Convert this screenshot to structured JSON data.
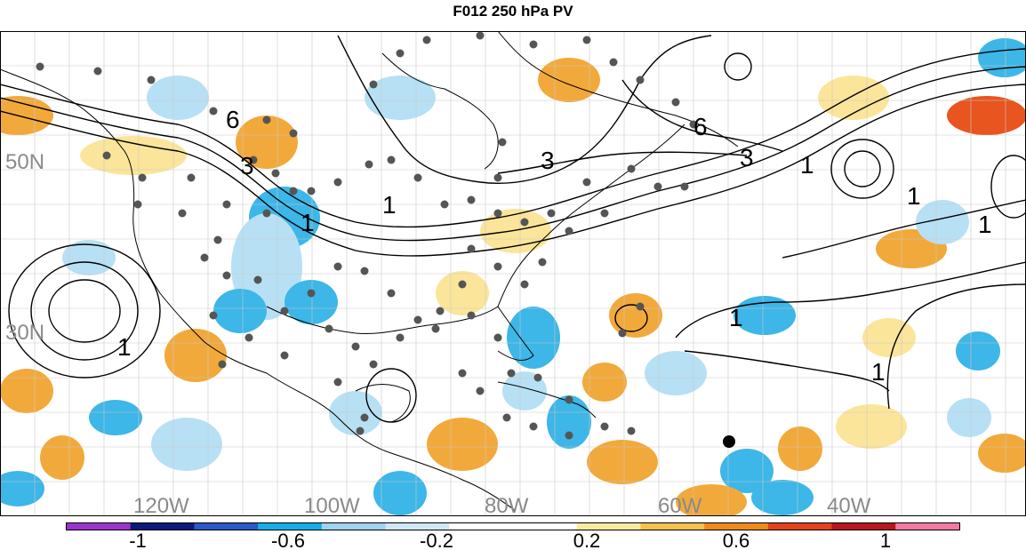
{
  "title": "F012 250 hPa PV",
  "map": {
    "latitude_labels": [
      "50N",
      "30N"
    ],
    "longitude_labels": [
      "120W",
      "100W",
      "80W",
      "60W",
      "40W"
    ],
    "contour_labels": [
      "6",
      "3",
      "1",
      "1",
      "3",
      "3",
      "6",
      "1",
      "1",
      "1",
      "1",
      "1",
      "1"
    ],
    "colors": {
      "ocean": "#ffffff",
      "coast": "#000000",
      "grid": "#c8c8c8",
      "contour": "#000000",
      "station_dot": "#555555",
      "lat_lon_label": "#8a8a8a",
      "pos_weak": "#fbe59a",
      "pos_mid": "#f2a93b",
      "pos_strong": "#e8551e",
      "neg_weak": "#b8e0f4",
      "neg_mid": "#3db6e8",
      "neg_strong": "#2f5fc8"
    }
  },
  "colorbar": {
    "tick_labels": [
      "-1",
      "-0.6",
      "-0.2",
      "0.2",
      "0.6",
      "1"
    ],
    "bins": [
      "#9a35cc",
      "#0c1a7a",
      "#2a58c8",
      "#1aaee8",
      "#9fd3f0",
      "#cfe8f5",
      "#ffffff",
      "#ffffff",
      "#fbeaa0",
      "#f5c24e",
      "#ee8a1e",
      "#e4421e",
      "#b5181e",
      "#f07aa4"
    ]
  }
}
